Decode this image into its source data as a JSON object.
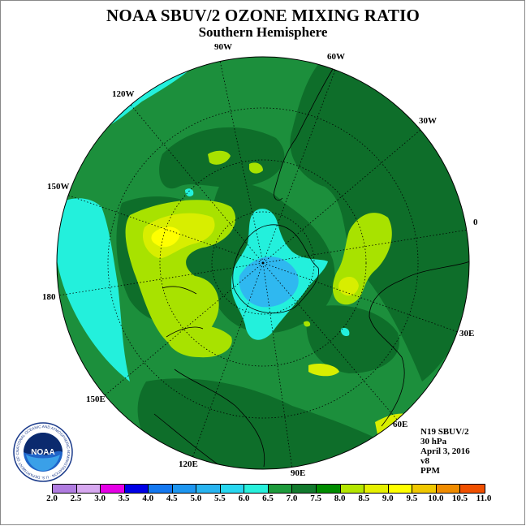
{
  "title": "NOAA SBUV/2 OZONE MIXING RATIO",
  "subtitle": "Southern Hemisphere",
  "longitude_labels": {
    "w90": "90W",
    "w60": "60W",
    "w30": "30W",
    "zero": "0",
    "e30": "30E",
    "e60": "60E",
    "e90": "90E",
    "e120": "120E",
    "e150": "150E",
    "d180": "180",
    "w150": "150W",
    "w120": "120W"
  },
  "info": {
    "instrument": "N19 SBUV/2",
    "level": "30 hPa",
    "date": "April 3, 2016",
    "version": "v8",
    "units": "PPM"
  },
  "logo_text": "NOAA",
  "logo_ring_text": "NATIONAL OCEANIC AND ATMOSPHERIC ADMINISTRATION · U.S. DEPARTMENT OF COMMERCE",
  "colorbar": {
    "ticks": [
      "2.0",
      "2.5",
      "3.0",
      "3.5",
      "4.0",
      "4.5",
      "5.0",
      "5.5",
      "6.0",
      "6.5",
      "7.0",
      "7.5",
      "8.0",
      "8.5",
      "9.0",
      "9.5",
      "10.0",
      "10.5",
      "11.0"
    ],
    "colors": [
      "#b07ce0",
      "#d7a8f0",
      "#e600e6",
      "#0000e6",
      "#1478f0",
      "#1e96f0",
      "#28b4f0",
      "#28d7f0",
      "#28f0dc",
      "#1e9b3c",
      "#127a2d",
      "#008c00",
      "#b4e600",
      "#e6f000",
      "#ffff00",
      "#f0c800",
      "#f08c00",
      "#f05000",
      "#e60000",
      "#8c5028"
    ]
  },
  "map_colors": {
    "level_6_0_6_5": "#23f0dc",
    "level_6_5_7_0": "#1c8f3c",
    "level_7_0_7_5": "#0e6e2a",
    "level_7_5_8_0": "#a8e200",
    "level_8_0_8_5": "#d8ee00",
    "level_8_5_9_0": "#ffff00",
    "level_5_5_6_0": "#2fb8f0"
  }
}
